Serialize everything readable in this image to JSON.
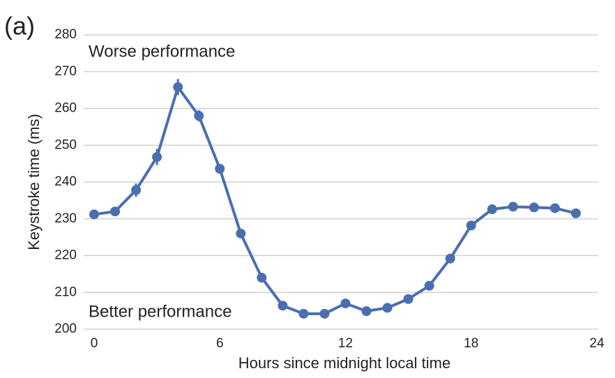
{
  "chart_data": {
    "type": "line",
    "panel_label": "(a)",
    "annotations": [
      "Worse performance",
      "Better performance"
    ],
    "xlabel": "Hours since midnight local time",
    "ylabel": "Keystroke time (ms)",
    "xlim": [
      0,
      24
    ],
    "xticks": [
      0,
      6,
      12,
      18,
      24
    ],
    "ylim": [
      200,
      280
    ],
    "yticks": [
      200,
      210,
      220,
      230,
      240,
      250,
      260,
      270,
      280
    ],
    "grid": true,
    "x": [
      0,
      1,
      2,
      3,
      4,
      5,
      6,
      7,
      8,
      9,
      10,
      11,
      12,
      13,
      14,
      15,
      16,
      17,
      18,
      19,
      20,
      21,
      22,
      23
    ],
    "series": [
      {
        "color": "#4a6fb0",
        "values": [
          231.2,
          232.0,
          237.8,
          246.8,
          265.8,
          258.0,
          243.6,
          226.0,
          214.0,
          206.4,
          204.2,
          204.2,
          207.0,
          204.9,
          205.8,
          208.2,
          211.8,
          219.2,
          228.2,
          232.6,
          233.3,
          233.1,
          232.9,
          231.5
        ],
        "errors": [
          0.5,
          1.2,
          1.8,
          2.2,
          2.2,
          1.5,
          0.8,
          0.5,
          0.5,
          0.5,
          0.5,
          0.5,
          0.5,
          0.5,
          0.5,
          0.5,
          0.5,
          0.5,
          0.5,
          0.5,
          0.5,
          0.5,
          0.5,
          0.5
        ]
      }
    ]
  }
}
